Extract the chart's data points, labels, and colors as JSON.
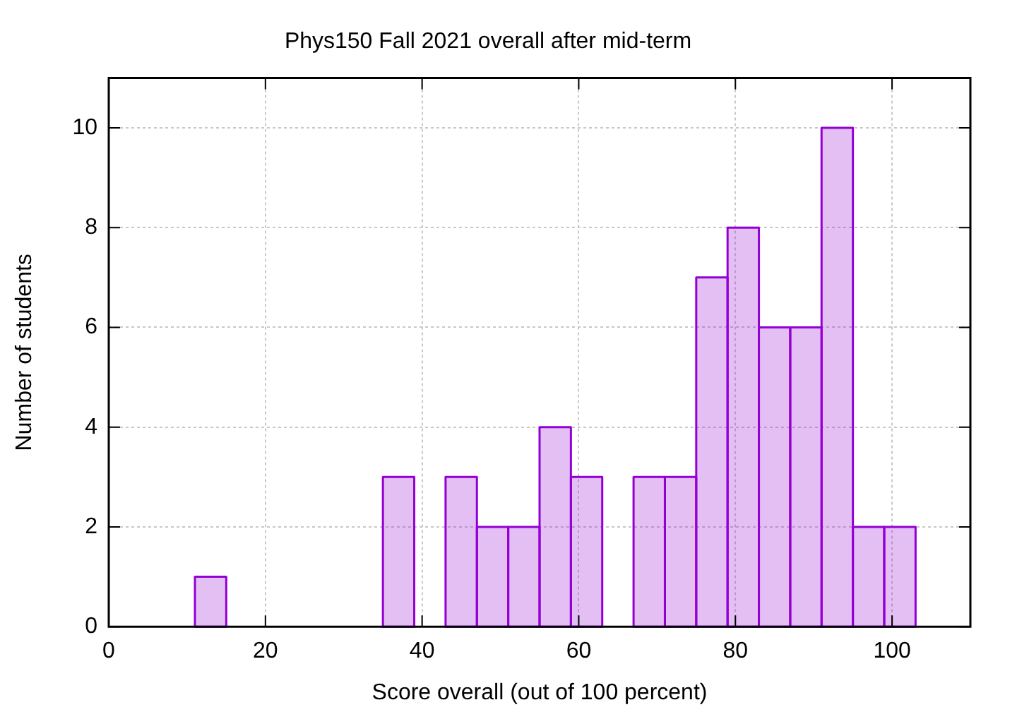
{
  "chart_data": {
    "type": "histogram",
    "title": "Phys150 Fall 2021 overall after mid-term",
    "xlabel": "Score overall (out of 100 percent)",
    "ylabel": "Number of students",
    "bins": [
      11,
      15,
      19,
      23,
      27,
      31,
      35,
      39,
      43,
      47,
      51,
      55,
      59,
      63,
      67,
      71,
      75,
      79,
      83,
      87,
      91,
      95,
      99,
      103
    ],
    "values": [
      1,
      0,
      0,
      0,
      0,
      0,
      3,
      0,
      3,
      2,
      2,
      4,
      3,
      0,
      3,
      3,
      7,
      8,
      6,
      6,
      10,
      2,
      2
    ],
    "color": "#9400d3",
    "xlim": [
      0,
      110
    ],
    "xticks": [
      0,
      20,
      40,
      60,
      80,
      100
    ],
    "ylim": [
      0,
      11
    ],
    "yticks": [
      0,
      2,
      4,
      6,
      8,
      10
    ],
    "grid": true
  }
}
